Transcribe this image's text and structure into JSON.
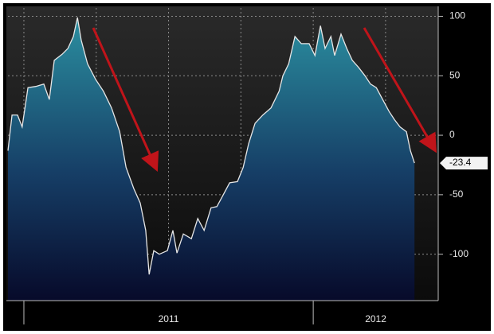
{
  "chart_data": {
    "type": "area",
    "x": [
      2010.945,
      2010.959,
      2010.978,
      2010.994,
      2011.014,
      2011.041,
      2011.069,
      2011.088,
      2011.105,
      2011.132,
      2011.152,
      2011.171,
      2011.185,
      2011.198,
      2011.22,
      2011.248,
      2011.275,
      2011.303,
      2011.331,
      2011.353,
      2011.38,
      2011.402,
      2011.421,
      2011.433,
      2011.449,
      2011.468,
      2011.496,
      2011.515,
      2011.529,
      2011.551,
      2011.579,
      2011.601,
      2011.623,
      2011.647,
      2011.667,
      2011.689,
      2011.711,
      2011.738,
      2011.758,
      2011.777,
      2011.799,
      2011.826,
      2011.854,
      2011.882,
      2011.895,
      2011.915,
      2011.937,
      2011.959,
      2011.986,
      2012.006,
      2012.025,
      2012.041,
      2012.061,
      2012.074,
      2012.096,
      2012.116,
      2012.135,
      2012.157,
      2012.179,
      2012.198,
      2012.218,
      2012.24,
      2012.262,
      2012.281,
      2012.3,
      2012.322,
      2012.336,
      2012.35
    ],
    "values": [
      -13,
      17,
      17,
      7,
      40,
      41,
      43,
      30,
      63,
      68,
      73,
      83,
      99,
      80,
      60,
      47,
      37,
      23,
      3,
      -27,
      -45,
      -57,
      -80,
      -117,
      -97,
      -100,
      -97,
      -80,
      -99,
      -83,
      -87,
      -70,
      -80,
      -61,
      -60,
      -50,
      -40,
      -39,
      -27,
      -7,
      10,
      17,
      23,
      37,
      50,
      60,
      83,
      77,
      77,
      67,
      92,
      73,
      83,
      67,
      85,
      73,
      63,
      57,
      50,
      43,
      40,
      30,
      20,
      13,
      7,
      3,
      -13,
      -23.4
    ],
    "color": "#2b8fa0",
    "xlim": [
      2010.945,
      2012.432
    ],
    "xticks": [
      2011,
      2012
    ],
    "ylim": [
      -139,
      107
    ],
    "yticks": [
      -100,
      -50,
      0,
      50,
      100
    ],
    "grid": true
  }
}
